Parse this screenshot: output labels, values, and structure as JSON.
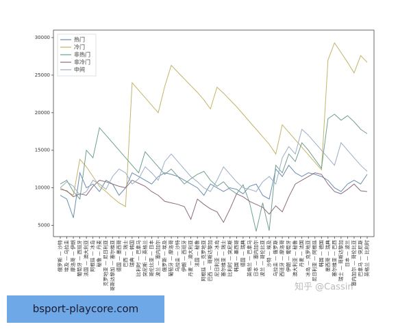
{
  "chart_data": {
    "type": "line",
    "categories": [
      "俄罗斯 — 沙特",
      "埃及 — 乌拉圭",
      "摩洛哥 — 伊朗",
      "葡萄牙 — 西班牙",
      "法国 — 澳大利亚",
      "阿根廷 — 冰岛",
      "秘鲁 — 丹麦",
      "克罗地亚 — 尼日利亚",
      "哥斯达黎加 — 塞尔维亚",
      "德国 — 墨西哥",
      "巴西 — 瑞士",
      "瑞典 — 韩国",
      "比利时 — 巴拿马",
      "突尼斯 — 英格兰",
      "哥伦比亚 — 日本",
      "波兰 — 塞内加尔",
      "俄罗斯 — 埃及",
      "葡萄牙 — 摩洛哥",
      "乌拉圭 — 沙特",
      "伊朗 — 西班牙",
      "丹麦 — 澳大利亚",
      "法国 — 秘鲁",
      "阿根廷 — 克罗地亚",
      "巴西 — 哥斯达黎加",
      "尼日利亚 — 冰岛",
      "塞尔维亚 — 瑞士",
      "比利时 — 突尼斯",
      "韩国 — 墨西哥",
      "德国 — 瑞典",
      "英格兰 — 巴拿马",
      "日本 — 塞内加尔",
      "波兰 — 哥伦比亚",
      "沙特 — 埃及",
      "乌拉圭 — 俄罗斯",
      "西班牙 — 摩洛哥",
      "伊朗 — 葡萄牙",
      "澳大利亚 — 秘鲁",
      "丹麦 — 法国",
      "冰岛 — 克罗地亚",
      "尼日利亚 — 阿根廷",
      "韩国 — 德国",
      "墨西哥 — 瑞典",
      "塞尔维亚 — 巴西",
      "瑞士 — 哥斯达黎加",
      "日本 — 波兰",
      "塞内加尔 — 哥伦比亚",
      "巴拿马 — 突尼斯",
      "英格兰 — 比利时"
    ],
    "series": [
      {
        "name": "热门",
        "color": "#6b8caf",
        "values": [
          9000,
          8500,
          6000,
          12000,
          10000,
          10500,
          9500,
          11000,
          10500,
          9000,
          10000,
          12000,
          11500,
          11000,
          10500,
          11500,
          12000,
          11800,
          11500,
          11000,
          10500,
          10000,
          9000,
          10500,
          10000,
          9500,
          10000,
          9800,
          9200,
          10200,
          10500,
          9000,
          8500,
          12500,
          11500,
          13000,
          12000,
          11500,
          12000,
          11800,
          11500,
          11000,
          10000,
          9500,
          10500,
          11000,
          10500,
          11800
        ]
      },
      {
        "name": "冷门",
        "color": "#c2b46a",
        "values": [
          10000,
          9500,
          9000,
          13800,
          12800,
          11500,
          10200,
          9500,
          8700,
          8000,
          7500,
          24000,
          23000,
          22000,
          21000,
          20000,
          23500,
          26300,
          25400,
          24500,
          23600,
          22700,
          21700,
          20500,
          23400,
          22600,
          21700,
          20800,
          19800,
          18800,
          17800,
          16800,
          15800,
          14500,
          18400,
          17400,
          16400,
          15400,
          14400,
          13400,
          12400,
          27000,
          29300,
          28000,
          26700,
          25300,
          27600,
          26700
        ]
      },
      {
        "name": "非热门",
        "color": "#6f9f8e",
        "values": [
          10500,
          11000,
          9500,
          8500,
          15000,
          14000,
          18000,
          17000,
          16000,
          15000,
          14000,
          13000,
          12000,
          14800,
          13800,
          12800,
          11800,
          12500,
          11500,
          10500,
          11200,
          11800,
          12200,
          11000,
          10200,
          10800,
          9800,
          9200,
          10400,
          8000,
          4200,
          8000,
          4300,
          13000,
          12000,
          14500,
          13500,
          16000,
          15000,
          13800,
          12600,
          19200,
          19800,
          19000,
          19600,
          18800,
          17800,
          17200
        ]
      },
      {
        "name": "非冷门",
        "color": "#8c6a7e",
        "values": [
          9800,
          9600,
          8800,
          9200,
          9000,
          10200,
          11000,
          10800,
          10500,
          10200,
          10000,
          11000,
          10600,
          10200,
          9500,
          9000,
          8200,
          8000,
          7800,
          7500,
          5800,
          8500,
          7800,
          7200,
          6800,
          5400,
          7200,
          9200,
          8800,
          8200,
          7800,
          7400,
          6500,
          7600,
          6800,
          8800,
          10500,
          11000,
          11500,
          12000,
          11800,
          10500,
          9500,
          9200,
          9800,
          10500,
          9600,
          9500
        ]
      },
      {
        "name": "中间",
        "color": "#9aaec4",
        "values": [
          10000,
          10800,
          10200,
          9000,
          9500,
          11000,
          10500,
          9800,
          11500,
          12500,
          12000,
          10500,
          11200,
          12800,
          12000,
          11000,
          13500,
          14500,
          13500,
          12500,
          11500,
          10800,
          10000,
          9500,
          11000,
          12800,
          11800,
          10800,
          10000,
          9800,
          9500,
          10800,
          11500,
          10500,
          14000,
          15500,
          14500,
          17800,
          17000,
          16000,
          15000,
          14000,
          13000,
          16000,
          15000,
          14000,
          13000,
          12200
        ]
      }
    ],
    "ylim": [
      3500,
      31000
    ],
    "yticks": [
      5000,
      10000,
      15000,
      20000,
      25000,
      30000
    ],
    "legend": "upper left"
  },
  "watermark": "知乎 @Cassin",
  "banner": "bsport-playcore.com"
}
